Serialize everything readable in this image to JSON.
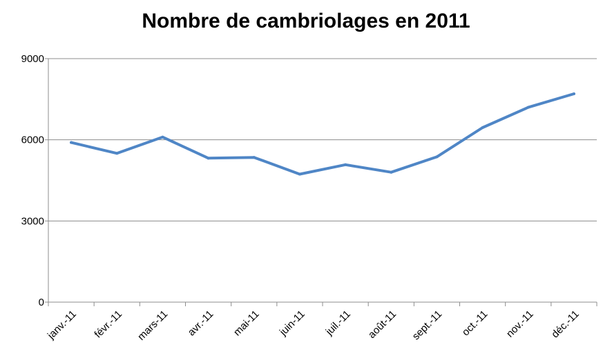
{
  "chart_data": {
    "type": "line",
    "title": "Nombre de cambriolages en 2011",
    "xlabel": "",
    "ylabel": "",
    "categories": [
      "janv.-11",
      "févr.-11",
      "mars-11",
      "avr.-11",
      "mai-11",
      "juin-11",
      "juil.-11",
      "août-11",
      "sept.-11",
      "oct.-11",
      "nov.-11",
      "déc.-11"
    ],
    "series": [
      {
        "values": [
          5900,
          5500,
          6100,
          5320,
          5350,
          4730,
          5080,
          4800,
          5370,
          6450,
          7200,
          7700
        ]
      }
    ],
    "ylim": [
      0,
      9000
    ],
    "yticks": [
      0,
      3000,
      6000,
      9000
    ],
    "grid": true,
    "legend": "none",
    "line_color": "#4f86c6",
    "grid_color": "#8c8c8c"
  }
}
